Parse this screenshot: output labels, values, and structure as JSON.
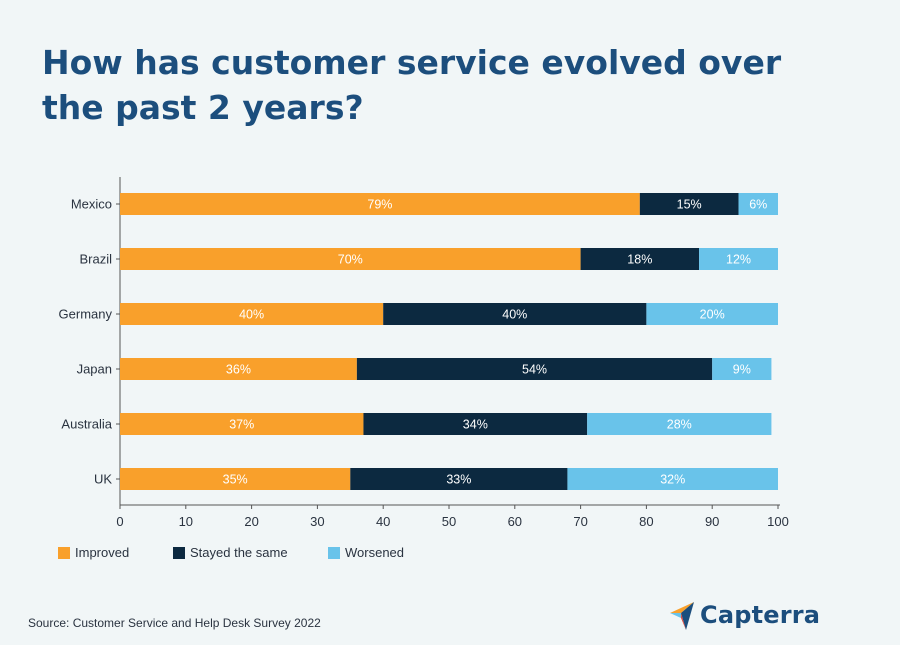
{
  "title": "How has customer service evolved over the past 2 years?",
  "source": "Source: Customer Service and Help Desk Survey 2022",
  "logo": {
    "text": "Capterra"
  },
  "colors": {
    "improved": "#f9a02b",
    "same": "#0c2940",
    "worsened": "#69c3ea",
    "title": "#1c4e7d"
  },
  "chart_data": {
    "type": "bar",
    "orientation": "horizontal",
    "stacked": true,
    "categories": [
      "Mexico",
      "Brazil",
      "Germany",
      "Japan",
      "Australia",
      "UK"
    ],
    "series": [
      {
        "name": "Improved",
        "values": [
          79,
          70,
          40,
          36,
          37,
          35
        ],
        "labels": [
          "79%",
          "70%",
          "40%",
          "36%",
          "37%",
          "35%"
        ],
        "color": "#f9a02b"
      },
      {
        "name": "Stayed the same",
        "values": [
          15,
          18,
          40,
          54,
          34,
          33
        ],
        "labels": [
          "15%",
          "18%",
          "40%",
          "54%",
          "34%",
          "33%"
        ],
        "color": "#0c2940"
      },
      {
        "name": "Worsened",
        "values": [
          6,
          12,
          20,
          9,
          28,
          32
        ],
        "labels": [
          "6%",
          "12%",
          "20%",
          "9%",
          "28%",
          "32%"
        ],
        "color": "#69c3ea"
      }
    ],
    "xlim": [
      0,
      100
    ],
    "xticks": [
      "0",
      "10",
      "20",
      "30",
      "40",
      "50",
      "60",
      "70",
      "80",
      "90",
      "100"
    ],
    "legend_position": "bottom-left",
    "grid": false
  }
}
